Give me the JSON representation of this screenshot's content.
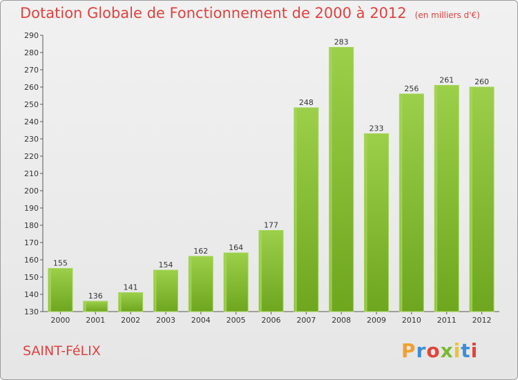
{
  "header": {
    "title": "Dotation Globale de Fonctionnement de 2000 à 2012",
    "unit": "(en milliers d'€)"
  },
  "footer": {
    "commune": "SAINT-FéLIX",
    "logo_letters": [
      "P",
      "r",
      "o",
      "x",
      "i",
      "t",
      "i"
    ],
    "logo_colors": [
      "#f0a030",
      "#3a8fd6",
      "#e2443a",
      "#7ab92f",
      "#f0c030",
      "#3a8fd6",
      "#e2443a"
    ]
  },
  "chart_data": {
    "type": "bar",
    "title": "Dotation Globale de Fonctionnement de 2000 à 2012",
    "xlabel": "",
    "ylabel": "",
    "categories": [
      "2000",
      "2001",
      "2002",
      "2003",
      "2004",
      "2005",
      "2006",
      "2007",
      "2008",
      "2009",
      "2010",
      "2011",
      "2012"
    ],
    "values": [
      155,
      136,
      141,
      154,
      162,
      164,
      177,
      248,
      283,
      233,
      256,
      261,
      260
    ],
    "ylim": [
      130,
      290
    ],
    "ytick_step": 10,
    "grid": false,
    "bar_color": "#7db531",
    "bar_highlight": "#a6d65a"
  }
}
